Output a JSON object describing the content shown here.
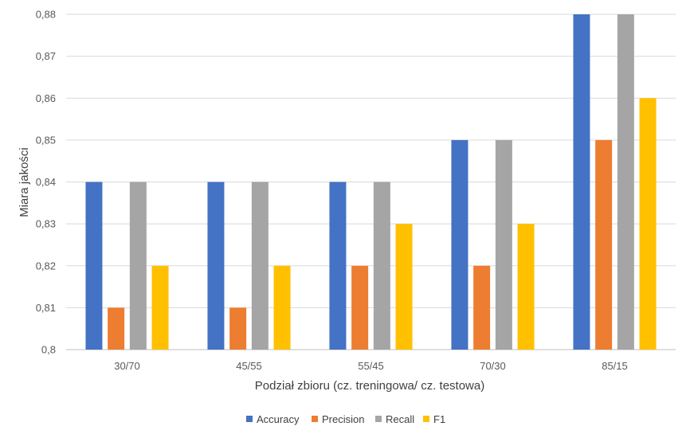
{
  "chart_data": {
    "type": "bar",
    "categories": [
      "30/70",
      "45/55",
      "55/45",
      "70/30",
      "85/15"
    ],
    "series": [
      {
        "name": "Accuracy",
        "color": "#4472c4",
        "values": [
          0.84,
          0.84,
          0.84,
          0.85,
          0.88
        ]
      },
      {
        "name": "Precision",
        "color": "#ed7d31",
        "values": [
          0.81,
          0.81,
          0.82,
          0.82,
          0.85
        ]
      },
      {
        "name": "Recall",
        "color": "#a5a5a5",
        "values": [
          0.84,
          0.84,
          0.84,
          0.85,
          0.88
        ]
      },
      {
        "name": "F1",
        "color": "#ffc000",
        "values": [
          0.82,
          0.82,
          0.83,
          0.83,
          0.86
        ]
      }
    ],
    "title": "",
    "xlabel": "Podział zbioru (cz. treningowa/ cz. testowa)",
    "ylabel": "Miara jakości",
    "ylim": [
      0.8,
      0.88
    ],
    "yticks": [
      "0,8",
      "0,81",
      "0,82",
      "0,83",
      "0,84",
      "0,85",
      "0,86",
      "0,87",
      "0,88"
    ],
    "grid": true,
    "legend": "bottom"
  }
}
